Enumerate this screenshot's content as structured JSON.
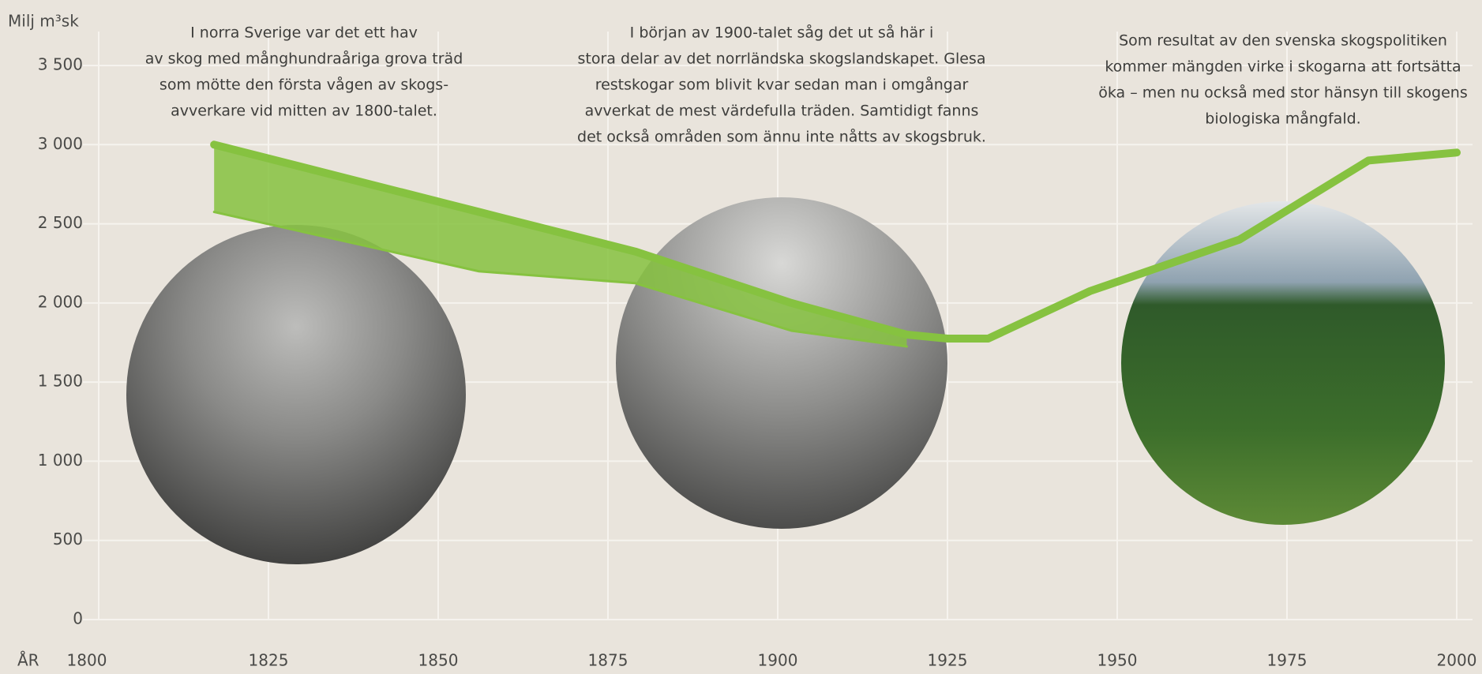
{
  "chart_data": {
    "type": "line",
    "y_label": "Milj m³sk",
    "x_label": "ÅR",
    "annotations": [
      [
        "I norra Sverige var det ett hav",
        "av skog med månghundraåriga grova träd",
        "som mötte den första vågen av skogs-",
        "avverkare vid mitten av 1800-talet."
      ],
      [
        "I början av 1900-talet såg det ut så här i",
        "stora delar av det norrländska skogslandskapet. Glesa",
        "restskogar som blivit kvar sedan man i omgångar",
        "avverkat de mest värdefulla träden. Samtidigt fanns",
        "det också områden som ännu inte nåtts av skogsbruk."
      ],
      [
        "Som resultat av den svenska skogspolitiken",
        "kommer mängden virke i skogarna att fortsätta",
        "öka – men nu också med stor hänsyn till skogens",
        "biologiska mångfald."
      ]
    ],
    "x": [
      1817,
      1856,
      1879,
      1902,
      1919,
      1925,
      1931,
      1946,
      1968,
      1987,
      2000
    ],
    "series": [
      {
        "color": "#86c240",
        "values": [
          3000,
          2575,
          2325,
          2000,
          1800,
          1775,
          1775,
          2075,
          2400,
          2900,
          2950
        ]
      },
      {
        "color": "#86c240",
        "values": [
          2575,
          2200,
          2125,
          1825,
          1725,
          null,
          null,
          null,
          null,
          null,
          null
        ]
      }
    ],
    "xlim": [
      1800,
      2000
    ],
    "xticks": [
      1800,
      1825,
      1850,
      1875,
      1900,
      1925,
      1950,
      1975,
      2000
    ],
    "ylim": [
      0,
      3500
    ],
    "yticks": [
      0,
      500,
      {
        "value": 1000,
        "label": "1 000"
      },
      {
        "value": 1500,
        "label": "1 500"
      },
      {
        "value": 2000,
        "label": "2 000"
      },
      {
        "value": 2500,
        "label": "2 500"
      },
      {
        "value": 3000,
        "label": "3 000"
      },
      {
        "value": 3500,
        "label": "3 500"
      }
    ],
    "grid": true
  }
}
